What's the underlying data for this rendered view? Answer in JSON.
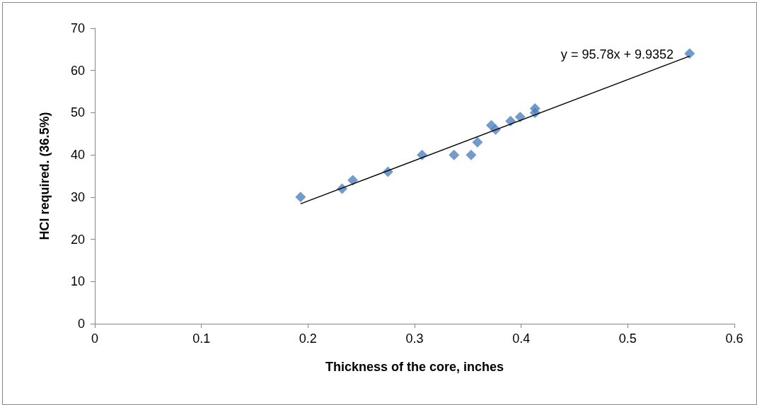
{
  "chart_data": {
    "type": "scatter",
    "xlabel": "Thickness of the core, inches",
    "ylabel": "HCl required. (36.5%)",
    "marker": "diamond",
    "grid": false,
    "xlim": [
      0,
      0.6
    ],
    "xticks": [
      0,
      0.1,
      0.2,
      0.3,
      0.4,
      0.5,
      0.6
    ],
    "ylim": [
      0,
      70
    ],
    "yticks": [
      0,
      10,
      20,
      30,
      40,
      50,
      60,
      70
    ],
    "annotations": [
      "y = 95.78x + 9.9352"
    ],
    "series": [
      {
        "color": "#4f81bd",
        "x": [
          0.193,
          0.232,
          0.242,
          0.275,
          0.307,
          0.337,
          0.353,
          0.359,
          0.372,
          0.376,
          0.39,
          0.399,
          0.413,
          0.413,
          0.558
        ],
        "values": [
          30,
          32,
          34,
          36,
          40,
          40,
          40,
          43,
          47,
          46,
          48,
          49,
          51,
          50,
          64
        ]
      },
      {
        "type": "line",
        "color": "#000000",
        "line_style": "solid",
        "marker": "none",
        "x": [
          0.193,
          0.558
        ],
        "values": [
          28.4,
          63.4
        ]
      }
    ]
  }
}
